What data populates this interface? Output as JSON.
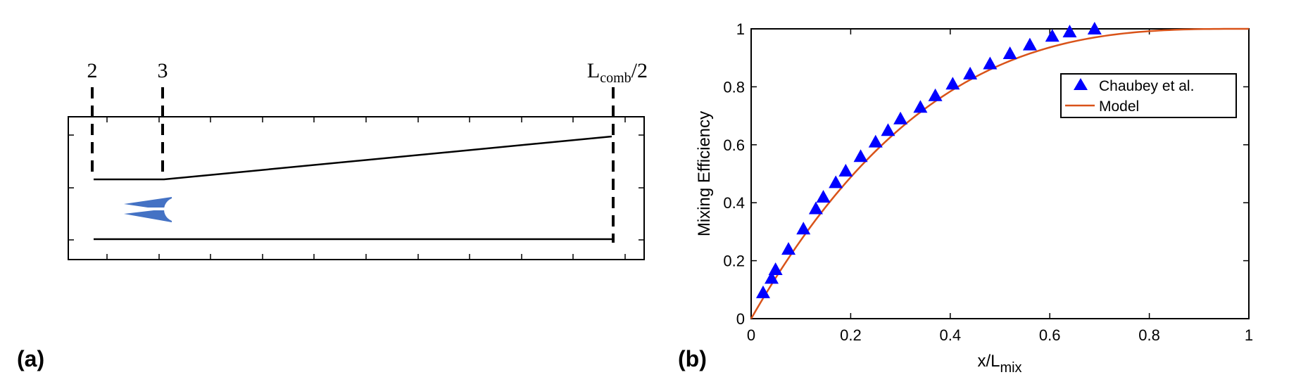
{
  "panel_a": {
    "label": "(a)",
    "station_2": "2",
    "station_3": "3",
    "station_end_main": "L",
    "station_end_sub": "comb",
    "station_end_suffix": "/2",
    "injector_color": "#4472c4"
  },
  "panel_b": {
    "label": "(b)"
  },
  "chart_data": {
    "type": "scatter",
    "xlabel_main": "x/L",
    "xlabel_sub": "mix",
    "ylabel": "Mixing Efficiency",
    "xlim": [
      0,
      1
    ],
    "ylim": [
      0,
      1
    ],
    "xticks": [
      "0",
      "0.2",
      "0.4",
      "0.6",
      "0.8",
      "1"
    ],
    "yticks": [
      "0",
      "0.2",
      "0.4",
      "0.6",
      "0.8",
      "1"
    ],
    "grid": false,
    "legend_position": "top-right",
    "series": [
      {
        "name": "Chaubey et al.",
        "type": "scatter",
        "marker": "triangle",
        "color": "#0000ff",
        "x": [
          0.024,
          0.041,
          0.049,
          0.075,
          0.105,
          0.13,
          0.145,
          0.17,
          0.19,
          0.22,
          0.25,
          0.275,
          0.3,
          0.34,
          0.37,
          0.405,
          0.44,
          0.48,
          0.52,
          0.56,
          0.605,
          0.64,
          0.69
        ],
        "y": [
          0.09,
          0.14,
          0.17,
          0.24,
          0.31,
          0.38,
          0.42,
          0.47,
          0.51,
          0.56,
          0.61,
          0.65,
          0.69,
          0.73,
          0.77,
          0.81,
          0.845,
          0.88,
          0.915,
          0.945,
          0.975,
          0.99,
          1.0
        ]
      },
      {
        "name": "Model",
        "type": "line",
        "color": "#d95319",
        "formula": "1 - (1 - x)^3",
        "x": [
          0,
          0.1,
          0.2,
          0.3,
          0.4,
          0.5,
          0.6,
          0.7,
          0.8,
          0.9,
          1.0
        ],
        "y": [
          0,
          0.271,
          0.488,
          0.657,
          0.784,
          0.875,
          0.936,
          0.973,
          0.992,
          0.999,
          1.0
        ]
      }
    ]
  }
}
